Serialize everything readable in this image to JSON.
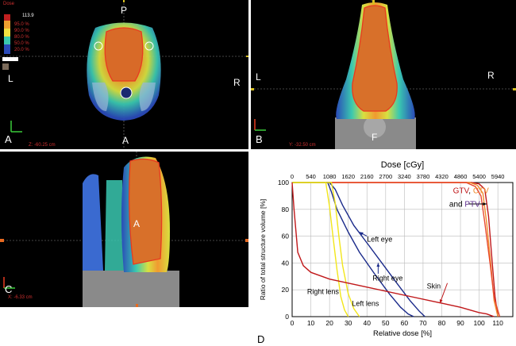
{
  "panels": {
    "A": {
      "letter": "A",
      "top": "P",
      "bottom": "A",
      "left": "L",
      "right": "R",
      "readout": "Z: -60.25 cm"
    },
    "B": {
      "letter": "B",
      "left": "L",
      "right": "R",
      "bottom": "F",
      "readout": "Y: -32.50 cm"
    },
    "C": {
      "letter": "C",
      "center": "A",
      "readout": "X: -6.33 cm"
    },
    "D": {
      "letter": "D"
    },
    "dose_legend": {
      "title": "Dose",
      "max": "113.9",
      "levels": [
        "95.0 %",
        "90.0 %",
        "80.0 %",
        "50.0 %",
        "20.0 %"
      ]
    }
  },
  "chart_data": {
    "type": "line",
    "title": "",
    "xlabel": "Relative dose [%]",
    "x2label": "Dose [cGy]",
    "ylabel": "Ratio of total structure volume [%]",
    "xlim": [
      0,
      118
    ],
    "ylim": [
      0,
      100
    ],
    "xticks": [
      0,
      10,
      20,
      30,
      40,
      50,
      60,
      70,
      80,
      90,
      100,
      110
    ],
    "yticks": [
      0,
      20,
      40,
      60,
      80,
      100
    ],
    "x2ticks": [
      0,
      540,
      1080,
      1620,
      2160,
      2700,
      3240,
      3780,
      4320,
      4860,
      5400,
      5940
    ],
    "grid": true,
    "series": [
      {
        "name": "GTV",
        "color": "#c0181a",
        "x": [
          0,
          96,
          100,
          103,
          105,
          107,
          108.5,
          110
        ],
        "y": [
          100,
          100,
          99,
          95,
          75,
          40,
          15,
          0
        ]
      },
      {
        "name": "CTV",
        "color": "#f08a2a",
        "x": [
          0,
          95,
          99,
          102,
          104,
          106.5,
          108,
          110
        ],
        "y": [
          100,
          100,
          98,
          92,
          70,
          35,
          12,
          0
        ]
      },
      {
        "name": "PTV",
        "color": "#e84a30",
        "x": [
          0,
          93,
          98,
          101,
          103,
          106,
          108,
          111
        ],
        "y": [
          100,
          100,
          97,
          90,
          70,
          38,
          14,
          0
        ]
      },
      {
        "name": "Left eye",
        "color": "#1a2a8a",
        "x": [
          0,
          20,
          23,
          27,
          33,
          40,
          48,
          56,
          63,
          68,
          71
        ],
        "y": [
          100,
          100,
          95,
          83,
          68,
          55,
          40,
          25,
          12,
          4,
          0
        ]
      },
      {
        "name": "Right eye",
        "color": "#1a2a8a",
        "x": [
          0,
          19,
          21,
          24,
          30,
          36,
          44,
          52,
          58,
          62,
          65
        ],
        "y": [
          100,
          100,
          93,
          80,
          63,
          48,
          32,
          17,
          7,
          2,
          0
        ]
      },
      {
        "name": "Right lens",
        "color": "#f2e61a",
        "x": [
          0,
          18,
          20,
          22,
          24,
          26,
          28,
          30
        ],
        "y": [
          100,
          100,
          82,
          58,
          35,
          15,
          5,
          0
        ]
      },
      {
        "name": "Left lens",
        "color": "#f2e61a",
        "x": [
          0,
          21,
          23,
          25,
          27,
          30,
          33,
          36
        ],
        "y": [
          100,
          100,
          85,
          60,
          38,
          17,
          6,
          0
        ]
      },
      {
        "name": "Skin",
        "color": "#c0181a",
        "x": [
          0,
          1,
          3,
          6,
          10,
          20,
          40,
          60,
          80,
          90,
          95,
          100,
          104,
          106,
          108
        ],
        "y": [
          100,
          80,
          48,
          38,
          33,
          28,
          22,
          16,
          10,
          7,
          5,
          3,
          2,
          1,
          0
        ]
      }
    ],
    "annotations": [
      {
        "text": "Left eye",
        "color": "#000000",
        "x": 40,
        "y": 56
      },
      {
        "text": "Right eye",
        "color": "#000000",
        "x": 43,
        "y": 27
      },
      {
        "text": "Right lens",
        "color": "#000000",
        "x": 8,
        "y": 17
      },
      {
        "text": "Left lens",
        "color": "#000000",
        "x": 32,
        "y": 8
      },
      {
        "text": "Skin",
        "color": "#000000",
        "x": 72,
        "y": 21
      }
    ],
    "target_label": {
      "parts": [
        {
          "text": "GTV",
          "color": "#c0181a"
        },
        {
          "text": ", ",
          "color": "#000000"
        },
        {
          "text": "CTV",
          "color": "#f08a2a"
        },
        {
          "text": "and ",
          "color": "#000000"
        },
        {
          "text": "PTV",
          "color": "#5a2a8a"
        }
      ]
    }
  }
}
